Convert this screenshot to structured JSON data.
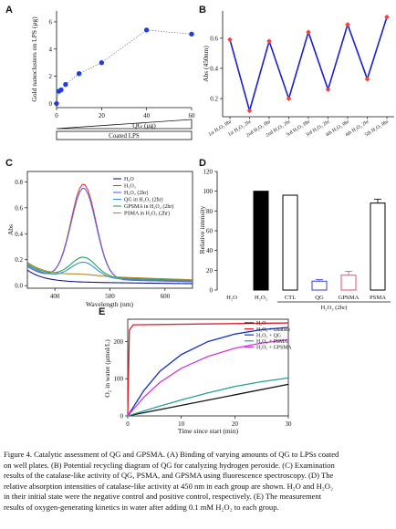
{
  "panels": {
    "A": {
      "letter": "A"
    },
    "B": {
      "letter": "B"
    },
    "C": {
      "letter": "C"
    },
    "D": {
      "letter": "D"
    },
    "E": {
      "letter": "E"
    }
  },
  "chart_data": [
    {
      "id": "A",
      "type": "scatter",
      "ylabel": "Gold nanoclusters on LPS (μg)",
      "xlabel": "QG (μg)",
      "bottom_label": "Coated LPS",
      "xticks": [
        0,
        20,
        40,
        60
      ],
      "yticks": [
        0,
        2,
        4,
        6
      ],
      "xlim": [
        0,
        60
      ],
      "ylim": [
        -0.3,
        6.8
      ],
      "x": [
        0,
        1,
        2,
        4,
        10,
        20,
        40,
        60
      ],
      "y": [
        0.0,
        0.9,
        1.0,
        1.4,
        2.2,
        3.0,
        5.4,
        5.1
      ],
      "colors": {
        "point": "#1f3de0",
        "line": "#777777"
      }
    },
    {
      "id": "B",
      "type": "line",
      "ylabel": "Abs (450nm)",
      "yticks": [
        0.2,
        0.4,
        0.6
      ],
      "ylim": [
        0.08,
        0.78
      ],
      "categories": [
        "1st H₂O₂ 0hr",
        "1st H₂O₂ 2hr",
        "2nd H₂O₂ 0hr",
        "2nd H₂O₂ 2hr",
        "3rd H₂O₂ 0hr",
        "3rd H₂O₂ 2hr",
        "4th H₂O₂ 0hr",
        "4th H₂O₂ 2hr",
        "5th H₂O₂ 0hr"
      ],
      "values": [
        0.59,
        0.12,
        0.58,
        0.2,
        0.64,
        0.26,
        0.69,
        0.33,
        0.74
      ],
      "colors": {
        "line": "#1a1fcf",
        "marker": "#f5413d"
      }
    },
    {
      "id": "C",
      "type": "line",
      "xlabel": "Wavelength (nm)",
      "ylabel": "Abs",
      "xticks": [
        400,
        500,
        600
      ],
      "yticks": [
        0.0,
        0.2,
        0.4,
        0.6,
        0.8
      ],
      "xlim": [
        350,
        650
      ],
      "ylim": [
        -0.02,
        0.88
      ],
      "series": [
        {
          "name": "H₂O",
          "color": "#111a8a",
          "peak": 0.03,
          "base": 0.03
        },
        {
          "name": "H₂O₂",
          "color": "#e23a3a",
          "peak": 0.79,
          "base": 0.06
        },
        {
          "name": "H₂O₂ (2hr)",
          "color": "#5b67e6",
          "peak": 0.76,
          "base": 0.06
        },
        {
          "name": "QG in H₂O₂ (2hr)",
          "color": "#3a8fd6",
          "peak": 0.19,
          "base": 0.07
        },
        {
          "name": "GPSMA in H₂O₂ (2hr)",
          "color": "#24a35a",
          "peak": 0.23,
          "base": 0.08
        },
        {
          "name": "PSMA in H₂O₂ (2hr)",
          "color": "#b08a2a",
          "peak": 0.1,
          "base": 0.09
        }
      ]
    },
    {
      "id": "D",
      "type": "bar",
      "ylabel": "Relative intensity",
      "yticks": [
        0,
        20,
        40,
        60,
        80,
        100,
        120
      ],
      "ylim": [
        0,
        120
      ],
      "categories": [
        "H₂O",
        "H₂O₂",
        "CTL",
        "QG",
        "GPSMA",
        "PSMA"
      ],
      "values": [
        0,
        100,
        96,
        9,
        15,
        88
      ],
      "errors": [
        0,
        0,
        0,
        1.5,
        4,
        4
      ],
      "colors": [
        "#ffffff",
        "#000000",
        "#ffffff",
        "#ffffff",
        "#ffffff",
        "#ffffff"
      ],
      "edge_colors": [
        "#000000",
        "#000000",
        "#000000",
        "#3340d8",
        "#e0506a",
        "#000000"
      ],
      "group_label": "H₂O₂ (2hr)"
    },
    {
      "id": "E",
      "type": "line",
      "xlabel": "Time since start (min)",
      "ylabel": "O₂ in water (μmol/L)",
      "xticks": [
        0,
        10,
        20,
        30
      ],
      "yticks": [
        0,
        100,
        200
      ],
      "xlim": [
        0,
        30
      ],
      "ylim": [
        0,
        260
      ],
      "series": [
        {
          "name": "H₂O",
          "color": "#111111",
          "x": [
            0,
            30
          ],
          "y": [
            0,
            85
          ]
        },
        {
          "name": "H₂O₂ + catalase",
          "color": "#e01f2a",
          "x": [
            0,
            0.3,
            1,
            30
          ],
          "y": [
            0,
            230,
            245,
            250
          ]
        },
        {
          "name": "H₂O₂ + QG",
          "color": "#1730c4",
          "x": [
            0,
            3,
            6,
            10,
            15,
            20,
            25,
            30
          ],
          "y": [
            0,
            68,
            120,
            165,
            200,
            220,
            232,
            238
          ]
        },
        {
          "name": "H₂O₂ + PSMA",
          "color": "#2a9e97",
          "x": [
            0,
            5,
            10,
            15,
            20,
            25,
            30
          ],
          "y": [
            0,
            22,
            43,
            62,
            79,
            92,
            102
          ]
        },
        {
          "name": "H₂O₂ + GPSMA",
          "color": "#d23ad6",
          "x": [
            0,
            3,
            6,
            10,
            15,
            20,
            25,
            30
          ],
          "y": [
            0,
            50,
            90,
            128,
            160,
            182,
            196,
            205
          ]
        }
      ]
    }
  ],
  "caption": {
    "lines": [
      "Figure 4. Catalytic assessment of QG and GPSMA. (A) Binding of varying amounts of QG to LPSs coated",
      "on well plates. (B) Potential recycling diagram of QG for catalyzing hydrogen peroxide. (C) Examination",
      "results of the catalase-like activity of QG, PSMA, and GPSMA using fluorescence spectroscopy. (D) The",
      "relative absorption intensities of catalase-like activity at 450 nm in each group are shown. H₂O and H₂O₂",
      "in their initial state were the negative control and positive control, respectively. (E) The measurement",
      "results of oxygen-generating kinetics in water after adding 0.1 mM H₂O₂ to each group."
    ]
  }
}
